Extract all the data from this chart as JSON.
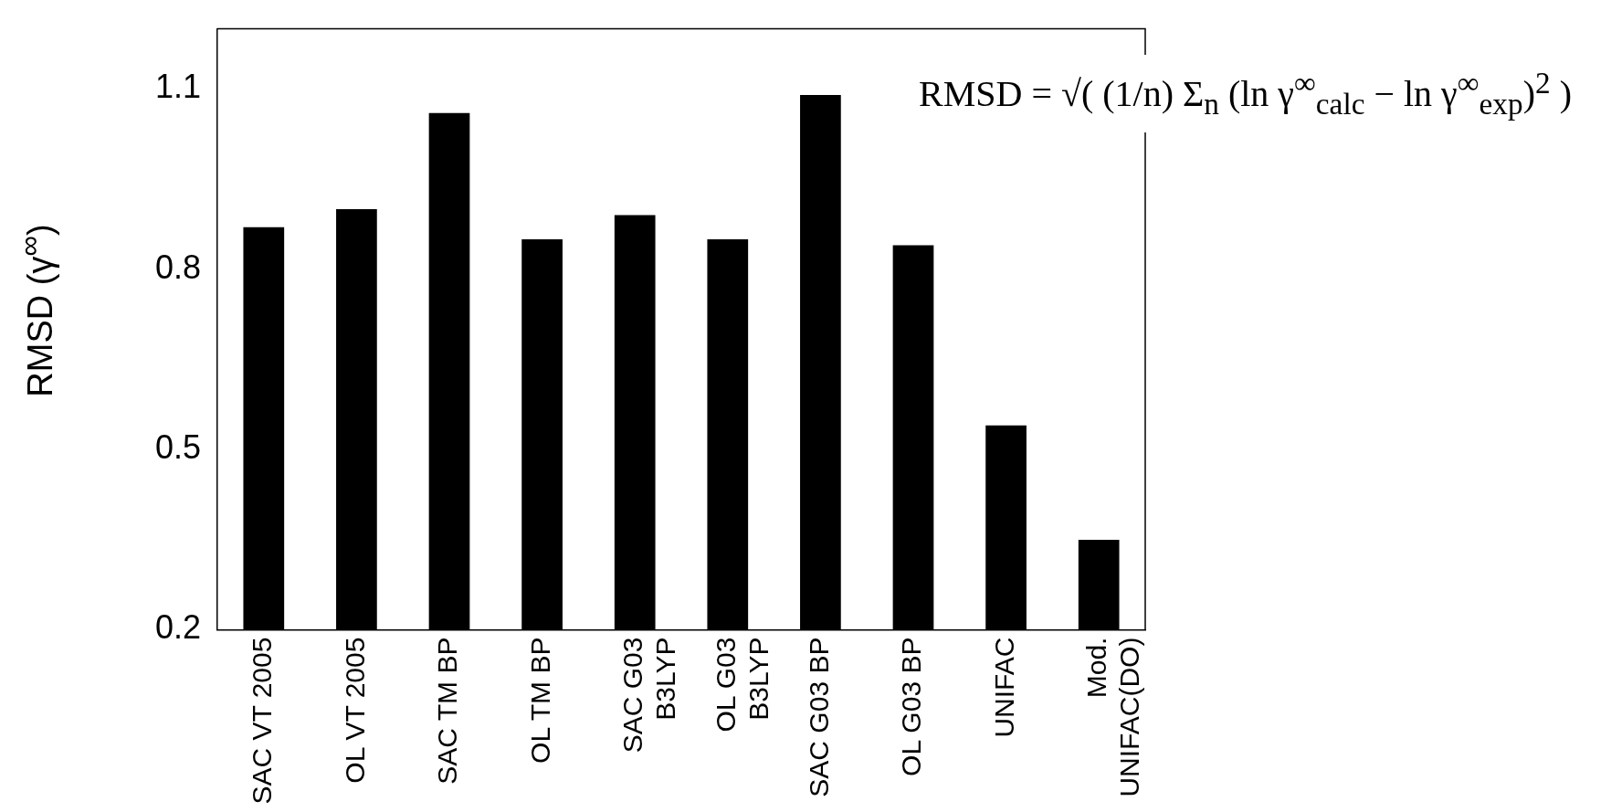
{
  "chart_data": {
    "type": "bar",
    "ylabel": "RMSD (γ$^{∞}$)",
    "categories": [
      "SAC VT 2005",
      "OL VT 2005",
      "SAC TM BP",
      "OL TM BP",
      "SAC G03 B3LYP",
      "OL G03 B3LYP",
      "SAC G03 BP",
      "OL G03 BP",
      "UNIFAC",
      "Mod. UNIFAC(DO)"
    ],
    "values": [
      0.87,
      0.9,
      1.06,
      0.85,
      0.89,
      0.85,
      1.09,
      0.84,
      0.54,
      0.35
    ],
    "color": "#000000",
    "ylim": [
      0.2,
      1.2
    ],
    "yticks": [
      0.2,
      0.5,
      0.8,
      1.1
    ],
    "grid": false,
    "legend": false,
    "annotations": [
      "RMSD = √( (1/n) Σ$_{n}$ (ln γ$^{∞}$$_{calc}$ − ln γ$^{∞}$$_{exp}$)$^{2}$ )"
    ]
  }
}
